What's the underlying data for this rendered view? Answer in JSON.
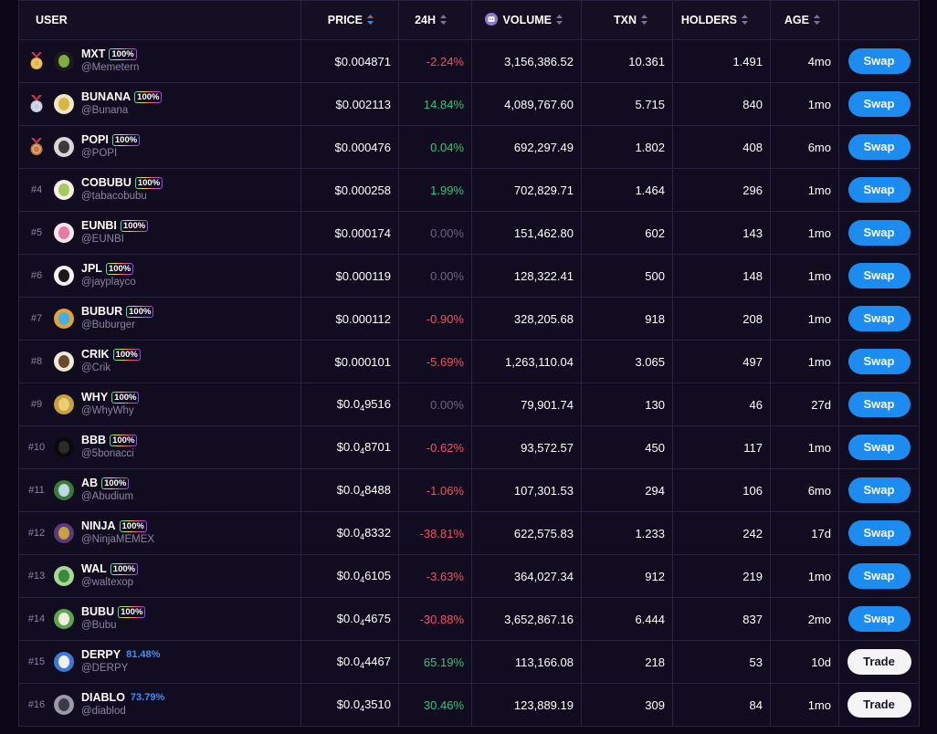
{
  "header": {
    "user": "USER",
    "price": "PRICE",
    "change_24h": "24H",
    "volume": "VOLUME",
    "txn": "TXN",
    "holders": "HOLDERS",
    "age": "AGE"
  },
  "colors": {
    "swap_button": "#1d8cf0",
    "trade_button": "#f4f4f6",
    "negative": "#f0535e",
    "positive": "#2fc67a",
    "neutral": "#6a6580",
    "gold_medal": "#e7b343",
    "silver_medal": "#c7cbe0",
    "bronze_medal": "#c47a44"
  },
  "rows": [
    {
      "rank": "",
      "medal": "gold",
      "ticker": "MXT",
      "badge": "100%",
      "progress": "",
      "handle": "@Memetern",
      "price_main": "$0.004871",
      "price_sub": "",
      "price_rest": "",
      "change": "-2.24%",
      "dir": "neg",
      "volume": "3,156,386.52",
      "txn": "10.361",
      "holders": "1.491",
      "age": "4mo",
      "action": "Swap",
      "avatar_bg": "#1b1b1b",
      "avatar_fg": "#7fae3a"
    },
    {
      "rank": "",
      "medal": "silver",
      "ticker": "BUNANA",
      "badge": "100%",
      "progress": "",
      "handle": "@Bunana",
      "price_main": "$0.002113",
      "price_sub": "",
      "price_rest": "",
      "change": "14.84%",
      "dir": "pos",
      "volume": "4,089,767.60",
      "txn": "5.715",
      "holders": "840",
      "age": "1mo",
      "action": "Swap",
      "avatar_bg": "#f0e6c8",
      "avatar_fg": "#d8b640"
    },
    {
      "rank": "",
      "medal": "bronze",
      "ticker": "POPI",
      "badge": "100%",
      "progress": "",
      "handle": "@POPI",
      "price_main": "$0.000476",
      "price_sub": "",
      "price_rest": "",
      "change": "0.04%",
      "dir": "pos",
      "volume": "692,297.49",
      "txn": "1.802",
      "holders": "408",
      "age": "6mo",
      "action": "Swap",
      "avatar_bg": "#d8d8d8",
      "avatar_fg": "#3a3a3a"
    },
    {
      "rank": "#4",
      "medal": "",
      "ticker": "COBUBU",
      "badge": "100%",
      "progress": "",
      "handle": "@tabacobubu",
      "price_main": "$0.000258",
      "price_sub": "",
      "price_rest": "",
      "change": "1.99%",
      "dir": "pos",
      "volume": "702,829.71",
      "txn": "1.464",
      "holders": "296",
      "age": "1mo",
      "action": "Swap",
      "avatar_bg": "#f4f1e4",
      "avatar_fg": "#a8c860"
    },
    {
      "rank": "#5",
      "medal": "",
      "ticker": "EUNBI",
      "badge": "100%",
      "progress": "",
      "handle": "@EUNBI",
      "price_main": "$0.000174",
      "price_sub": "",
      "price_rest": "",
      "change": "0.00%",
      "dir": "neu",
      "volume": "151,462.80",
      "txn": "602",
      "holders": "143",
      "age": "1mo",
      "action": "Swap",
      "avatar_bg": "#f6e6ee",
      "avatar_fg": "#e87aa8"
    },
    {
      "rank": "#6",
      "medal": "",
      "ticker": "JPL",
      "badge": "100%",
      "progress": "",
      "handle": "@jayplayco",
      "price_main": "$0.000119",
      "price_sub": "",
      "price_rest": "",
      "change": "0.00%",
      "dir": "neu",
      "volume": "128,322.41",
      "txn": "500",
      "holders": "148",
      "age": "1mo",
      "action": "Swap",
      "avatar_bg": "#f2f2f2",
      "avatar_fg": "#1a1a1a"
    },
    {
      "rank": "#7",
      "medal": "",
      "ticker": "BUBUR",
      "badge": "100%",
      "progress": "",
      "handle": "@Buburger",
      "price_main": "$0.000112",
      "price_sub": "",
      "price_rest": "",
      "change": "-0.90%",
      "dir": "neg",
      "volume": "328,205.68",
      "txn": "918",
      "holders": "208",
      "age": "1mo",
      "action": "Swap",
      "avatar_bg": "#e8a030",
      "avatar_fg": "#40b0e8"
    },
    {
      "rank": "#8",
      "medal": "",
      "ticker": "CRIK",
      "badge": "100%",
      "progress": "",
      "handle": "@Crik",
      "price_main": "$0.000101",
      "price_sub": "",
      "price_rest": "",
      "change": "-5.69%",
      "dir": "neg",
      "volume": "1,263,110.04",
      "txn": "3.065",
      "holders": "497",
      "age": "1mo",
      "action": "Swap",
      "avatar_bg": "#f0ead8",
      "avatar_fg": "#6a4a2a"
    },
    {
      "rank": "#9",
      "medal": "",
      "ticker": "WHY",
      "badge": "100%",
      "progress": "",
      "handle": "@WhyWhy",
      "price_main": "$0.0",
      "price_sub": "4",
      "price_rest": "9516",
      "change": "0.00%",
      "dir": "neu",
      "volume": "79,901.74",
      "txn": "130",
      "holders": "46",
      "age": "27d",
      "action": "Swap",
      "avatar_bg": "#c8a040",
      "avatar_fg": "#e8d070"
    },
    {
      "rank": "#10",
      "medal": "",
      "ticker": "BBB",
      "badge": "100%",
      "progress": "",
      "handle": "@5bonacci",
      "price_main": "$0.0",
      "price_sub": "4",
      "price_rest": "8701",
      "change": "-0.62%",
      "dir": "neg",
      "volume": "93,572.57",
      "txn": "450",
      "holders": "117",
      "age": "1mo",
      "action": "Swap",
      "avatar_bg": "#0a0a0a",
      "avatar_fg": "#2a2a2a"
    },
    {
      "rank": "#11",
      "medal": "",
      "ticker": "AB",
      "badge": "100%",
      "progress": "",
      "handle": "@Abudium",
      "price_main": "$0.0",
      "price_sub": "4",
      "price_rest": "8488",
      "change": "-1.06%",
      "dir": "neg",
      "volume": "107,301.53",
      "txn": "294",
      "holders": "106",
      "age": "6mo",
      "action": "Swap",
      "avatar_bg": "#3a7a3a",
      "avatar_fg": "#c0d8e8"
    },
    {
      "rank": "#12",
      "medal": "",
      "ticker": "NINJA",
      "badge": "100%",
      "progress": "",
      "handle": "@NinjaMEMEX",
      "price_main": "$0.0",
      "price_sub": "4",
      "price_rest": "8332",
      "change": "-38.81%",
      "dir": "neg",
      "volume": "622,575.83",
      "txn": "1.233",
      "holders": "242",
      "age": "17d",
      "action": "Swap",
      "avatar_bg": "#5a3a7a",
      "avatar_fg": "#c8a040"
    },
    {
      "rank": "#13",
      "medal": "",
      "ticker": "WAL",
      "badge": "100%",
      "progress": "",
      "handle": "@waltexop",
      "price_main": "$0.0",
      "price_sub": "4",
      "price_rest": "6105",
      "change": "-3.63%",
      "dir": "neg",
      "volume": "364,027.34",
      "txn": "912",
      "holders": "219",
      "age": "1mo",
      "action": "Swap",
      "avatar_bg": "#a8d898",
      "avatar_fg": "#3a8a3a"
    },
    {
      "rank": "#14",
      "medal": "",
      "ticker": "BUBU",
      "badge": "100%",
      "progress": "",
      "handle": "@Bubu",
      "price_main": "$0.0",
      "price_sub": "4",
      "price_rest": "4675",
      "change": "-30.88%",
      "dir": "neg",
      "volume": "3,652,867.16",
      "txn": "6.444",
      "holders": "837",
      "age": "2mo",
      "action": "Swap",
      "avatar_bg": "#5aa84a",
      "avatar_fg": "#f0f0e0"
    },
    {
      "rank": "#15",
      "medal": "",
      "ticker": "DERPY",
      "badge": "",
      "progress": "81.48%",
      "handle": "@DERPY",
      "price_main": "$0.0",
      "price_sub": "4",
      "price_rest": "4467",
      "change": "65.19%",
      "dir": "pos",
      "volume": "113,166.08",
      "txn": "218",
      "holders": "53",
      "age": "10d",
      "action": "Trade",
      "avatar_bg": "#3a7ad8",
      "avatar_fg": "#f0f0f0"
    },
    {
      "rank": "#16",
      "medal": "",
      "ticker": "DIABLO",
      "badge": "",
      "progress": "73.79%",
      "handle": "@diablod",
      "price_main": "$0.0",
      "price_sub": "4",
      "price_rest": "3510",
      "change": "30.46%",
      "dir": "pos",
      "volume": "123,889.19",
      "txn": "309",
      "holders": "84",
      "age": "1mo",
      "action": "Trade",
      "avatar_bg": "#9a9aa8",
      "avatar_fg": "#3a3a48"
    }
  ]
}
